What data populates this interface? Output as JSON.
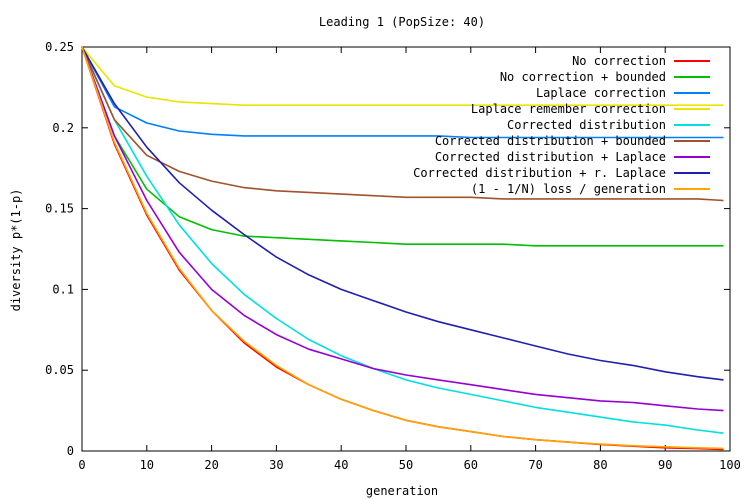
{
  "chart_data": {
    "type": "line",
    "title": "Leading 1 (PopSize: 40)",
    "xlabel": "generation",
    "ylabel": "diversity p*(1-p)",
    "xlim": [
      0,
      100
    ],
    "ylim": [
      0,
      0.25
    ],
    "x_ticks": [
      0,
      10,
      20,
      30,
      40,
      50,
      60,
      70,
      80,
      90,
      100
    ],
    "y_ticks": [
      0,
      0.05,
      0.1,
      0.15,
      0.2,
      0.25
    ],
    "x_tick_labels": [
      "0",
      "10",
      "20",
      "30",
      "40",
      "50",
      "60",
      "70",
      "80",
      "90",
      "100"
    ],
    "y_tick_labels": [
      "0",
      "0.05",
      "0.1",
      "0.15",
      "0.2",
      "0.25"
    ],
    "grid": false,
    "legend_position": "top-right",
    "x": [
      0,
      5,
      10,
      15,
      20,
      25,
      30,
      35,
      40,
      45,
      50,
      55,
      60,
      65,
      70,
      75,
      80,
      85,
      90,
      95,
      99
    ],
    "series": [
      {
        "name": "No correction",
        "color": "#ff0000",
        "values": [
          0.25,
          0.19,
          0.146,
          0.112,
          0.087,
          0.067,
          0.052,
          0.041,
          0.032,
          0.025,
          0.019,
          0.015,
          0.012,
          0.009,
          0.007,
          0.0055,
          0.004,
          0.003,
          0.002,
          0.0015,
          0.001
        ]
      },
      {
        "name": "No correction + bounded",
        "color": "#00c000",
        "values": [
          0.25,
          0.195,
          0.162,
          0.145,
          0.137,
          0.133,
          0.132,
          0.131,
          0.13,
          0.129,
          0.128,
          0.128,
          0.128,
          0.128,
          0.127,
          0.127,
          0.127,
          0.127,
          0.127,
          0.127,
          0.127
        ]
      },
      {
        "name": "Laplace correction",
        "color": "#0080ff",
        "values": [
          0.25,
          0.213,
          0.203,
          0.198,
          0.196,
          0.195,
          0.195,
          0.195,
          0.195,
          0.195,
          0.195,
          0.195,
          0.194,
          0.194,
          0.194,
          0.194,
          0.194,
          0.194,
          0.194,
          0.194,
          0.194
        ]
      },
      {
        "name": "Laplace remember correction",
        "color": "#e6e600",
        "values": [
          0.25,
          0.226,
          0.219,
          0.216,
          0.215,
          0.214,
          0.214,
          0.214,
          0.214,
          0.214,
          0.214,
          0.214,
          0.214,
          0.214,
          0.214,
          0.214,
          0.214,
          0.214,
          0.214,
          0.214,
          0.214
        ]
      },
      {
        "name": "Corrected distribution",
        "color": "#00e0e0",
        "values": [
          0.25,
          0.205,
          0.17,
          0.14,
          0.116,
          0.097,
          0.082,
          0.069,
          0.059,
          0.051,
          0.044,
          0.039,
          0.035,
          0.031,
          0.027,
          0.024,
          0.021,
          0.018,
          0.016,
          0.013,
          0.011
        ]
      },
      {
        "name": "Corrected distribution + bounded",
        "color": "#a0522d",
        "values": [
          0.25,
          0.205,
          0.183,
          0.173,
          0.167,
          0.163,
          0.161,
          0.16,
          0.159,
          0.158,
          0.157,
          0.157,
          0.157,
          0.156,
          0.156,
          0.156,
          0.156,
          0.156,
          0.156,
          0.156,
          0.155
        ]
      },
      {
        "name": "Corrected distribution + Laplace",
        "color": "#9400d3",
        "values": [
          0.25,
          0.195,
          0.155,
          0.123,
          0.1,
          0.084,
          0.072,
          0.063,
          0.057,
          0.051,
          0.047,
          0.044,
          0.041,
          0.038,
          0.035,
          0.033,
          0.031,
          0.03,
          0.028,
          0.026,
          0.025
        ]
      },
      {
        "name": "Corrected distribution + r. Laplace",
        "color": "#1f1fb0",
        "values": [
          0.25,
          0.215,
          0.188,
          0.166,
          0.149,
          0.134,
          0.12,
          0.109,
          0.1,
          0.093,
          0.086,
          0.08,
          0.075,
          0.07,
          0.065,
          0.06,
          0.056,
          0.053,
          0.049,
          0.046,
          0.044
        ]
      },
      {
        "name": "(1 - 1/N) loss / generation",
        "color": "#ffa500",
        "values": [
          0.25,
          0.191,
          0.147,
          0.113,
          0.087,
          0.068,
          0.053,
          0.041,
          0.032,
          0.025,
          0.019,
          0.015,
          0.012,
          0.009,
          0.007,
          0.0055,
          0.0043,
          0.0033,
          0.0026,
          0.002,
          0.0016
        ]
      }
    ]
  }
}
